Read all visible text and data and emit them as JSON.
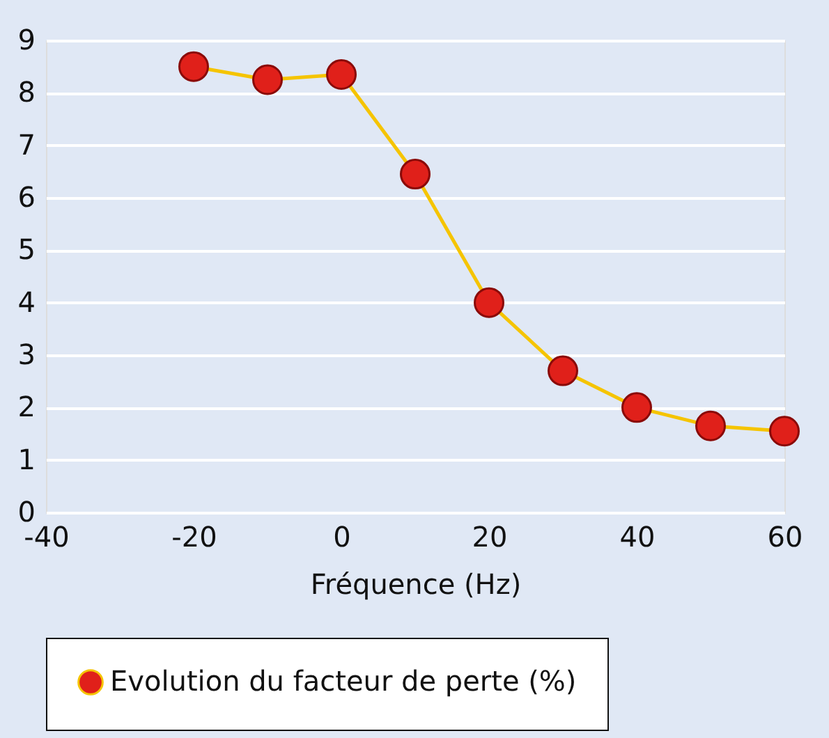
{
  "chart_data": {
    "type": "line",
    "xlabel": "Fréquence (Hz)",
    "x": [
      -20,
      -10,
      0,
      10,
      20,
      30,
      40,
      50,
      60
    ],
    "series": [
      {
        "name": "Evolution du facteur de perte (%)",
        "color": "#f5c400",
        "values": [
          8.5,
          8.25,
          8.35,
          6.45,
          4.0,
          2.7,
          2.0,
          1.65,
          1.55
        ]
      }
    ],
    "xlim": [
      -40,
      60
    ],
    "xticks": [
      -40,
      -20,
      0,
      20,
      40,
      60
    ],
    "ylim": [
      0,
      9
    ],
    "yticks": [
      0,
      1,
      2,
      3,
      4,
      5,
      6,
      7,
      8,
      9
    ],
    "grid": "y",
    "legend": "bottom",
    "marker": "circle",
    "line_style": "solid"
  }
}
